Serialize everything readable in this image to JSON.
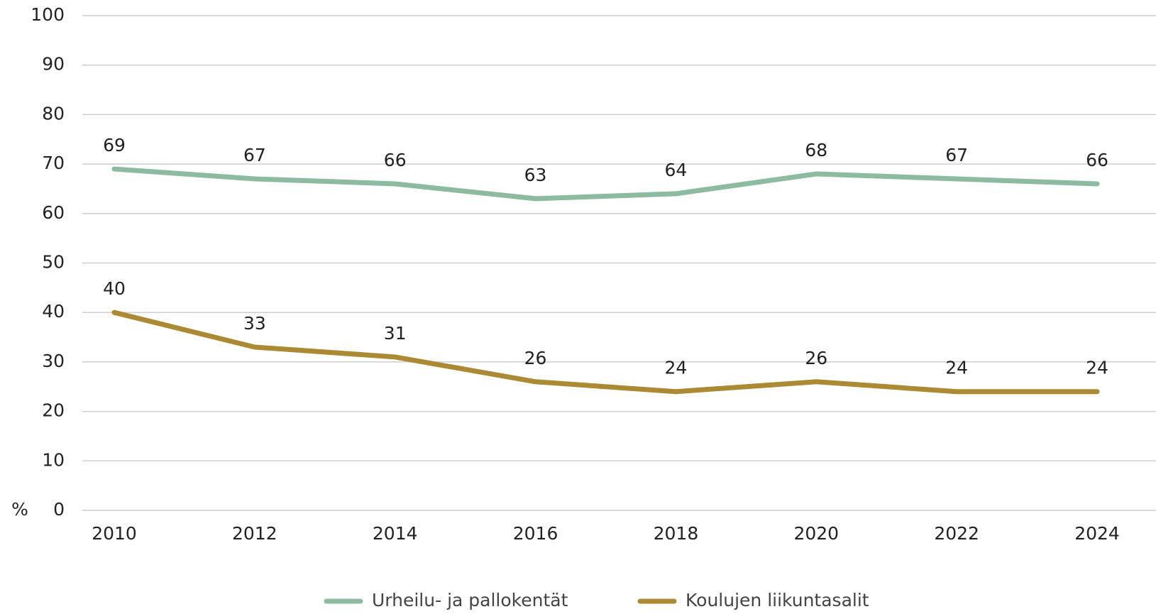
{
  "chart_data": {
    "type": "line",
    "ylabel": "%",
    "categories": [
      "2010",
      "2012",
      "2014",
      "2016",
      "2018",
      "2020",
      "2022",
      "2024"
    ],
    "series": [
      {
        "name": "Urheilu- ja pallokentät",
        "color": "#8dbb9f",
        "values": [
          69,
          67,
          66,
          63,
          64,
          68,
          67,
          66
        ]
      },
      {
        "name": "Koulujen liikuntasalit",
        "color": "#ab8a33",
        "values": [
          40,
          33,
          31,
          26,
          24,
          26,
          24,
          24
        ]
      }
    ],
    "ylim": [
      0,
      100
    ],
    "yticks": [
      0,
      10,
      20,
      30,
      40,
      50,
      60,
      70,
      80,
      90,
      100
    ],
    "grid": true,
    "legend": "bottom"
  }
}
